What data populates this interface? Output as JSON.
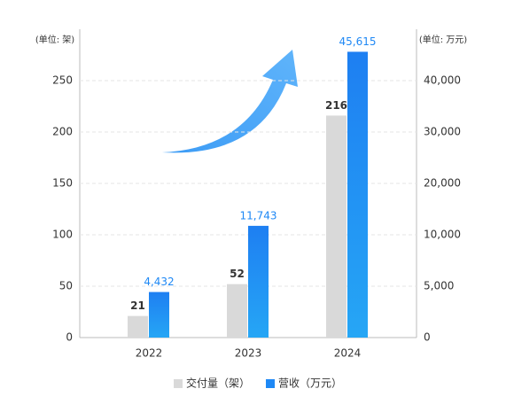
{
  "chart_data": {
    "type": "bar",
    "y_label": "(单位: 架)",
    "y2_label": "(单位: 万元)",
    "categories": [
      "2022",
      "2023",
      "2024"
    ],
    "series": [
      {
        "name": "交付量（架）",
        "color": "#d9d9d9",
        "values": [
          21,
          52,
          216
        ]
      },
      {
        "name": "营收（万元）",
        "color": "#1e88f5",
        "axis": "y2",
        "values": [
          4432,
          11743,
          45615
        ],
        "value_labels": [
          "4,432",
          "11,743",
          "45,615"
        ]
      }
    ],
    "ylim": [
      0,
      300
    ],
    "yticks": [
      0,
      50,
      100,
      150,
      200,
      250
    ],
    "y2lim": [
      0,
      50000
    ],
    "y2ticks": [
      0,
      {
        "value": 5000,
        "label": "5,000"
      },
      {
        "value": 10000,
        "label": "10,000"
      },
      {
        "value": 20000,
        "label": "20,000"
      },
      {
        "value": 30000,
        "label": "30,000"
      },
      {
        "value": 40000,
        "label": "40,000"
      }
    ],
    "grid": true,
    "legend": "bottom"
  }
}
